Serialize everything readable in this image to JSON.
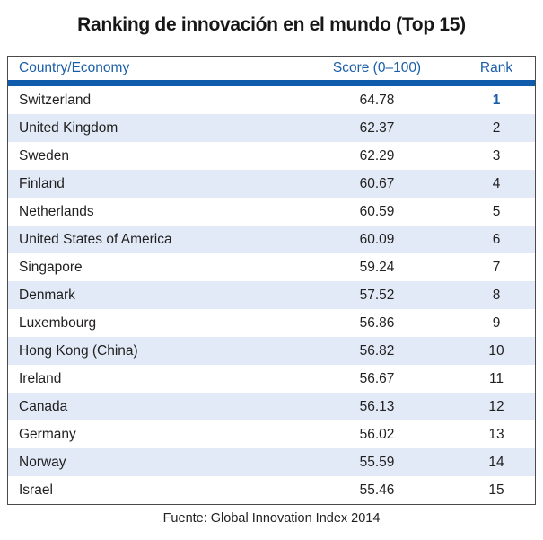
{
  "title": "Ranking de innovación en el mundo (Top 15)",
  "table": {
    "headers": {
      "country": "Country/Economy",
      "score": "Score (0–100)",
      "rank": "Rank"
    },
    "rows": [
      {
        "country": "Switzerland",
        "score": "64.78",
        "rank": "1"
      },
      {
        "country": "United Kingdom",
        "score": "62.37",
        "rank": "2"
      },
      {
        "country": "Sweden",
        "score": "62.29",
        "rank": "3"
      },
      {
        "country": "Finland",
        "score": "60.67",
        "rank": "4"
      },
      {
        "country": "Netherlands",
        "score": "60.59",
        "rank": "5"
      },
      {
        "country": "United States of America",
        "score": "60.09",
        "rank": "6"
      },
      {
        "country": "Singapore",
        "score": "59.24",
        "rank": "7"
      },
      {
        "country": "Denmark",
        "score": "57.52",
        "rank": "8"
      },
      {
        "country": "Luxembourg",
        "score": "56.86",
        "rank": "9"
      },
      {
        "country": "Hong Kong (China)",
        "score": "56.82",
        "rank": "10"
      },
      {
        "country": "Ireland",
        "score": "56.67",
        "rank": "11"
      },
      {
        "country": "Canada",
        "score": "56.13",
        "rank": "12"
      },
      {
        "country": "Germany",
        "score": "56.02",
        "rank": "13"
      },
      {
        "country": "Norway",
        "score": "55.59",
        "rank": "14"
      },
      {
        "country": "Israel",
        "score": "55.46",
        "rank": "15"
      }
    ]
  },
  "footer": "Fuente: Global Innovation Index 2014",
  "colors": {
    "header_text": "#1b5ea8",
    "divider_bar": "#0f5cad",
    "row_alt": "#e1eaf6",
    "text": "#211f1f",
    "rank_top": "#1b5ea8",
    "border": "#4a4a4a"
  },
  "chart_data": {
    "type": "table",
    "title": "Ranking de innovación en el mundo (Top 15)",
    "columns": [
      "Country/Economy",
      "Score (0–100)",
      "Rank"
    ],
    "categories": [
      "Switzerland",
      "United Kingdom",
      "Sweden",
      "Finland",
      "Netherlands",
      "United States of America",
      "Singapore",
      "Denmark",
      "Luxembourg",
      "Hong Kong (China)",
      "Ireland",
      "Canada",
      "Germany",
      "Norway",
      "Israel"
    ],
    "series": [
      {
        "name": "Score (0–100)",
        "values": [
          64.78,
          62.37,
          62.29,
          60.67,
          60.59,
          60.09,
          59.24,
          57.52,
          56.86,
          56.82,
          56.67,
          56.13,
          56.02,
          55.59,
          55.46
        ]
      },
      {
        "name": "Rank",
        "values": [
          1,
          2,
          3,
          4,
          5,
          6,
          7,
          8,
          9,
          10,
          11,
          12,
          13,
          14,
          15
        ]
      }
    ],
    "source_note": "Fuente: Global Innovation Index 2014"
  }
}
